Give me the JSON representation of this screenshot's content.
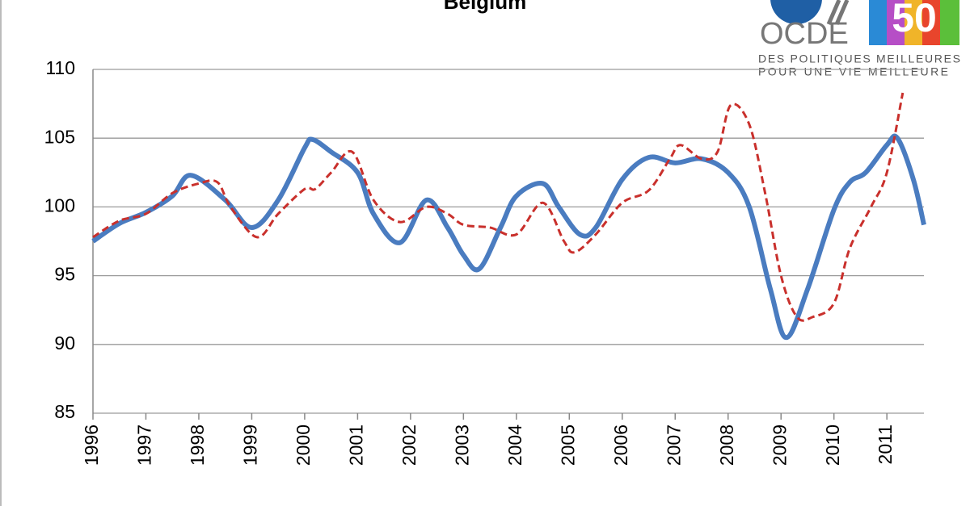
{
  "chart_data": {
    "type": "line",
    "title": "Belgium",
    "xlim": [
      1996,
      2011.7
    ],
    "xticks": [
      1996,
      1997,
      1998,
      1999,
      2000,
      2001,
      2002,
      2003,
      2004,
      2005,
      2006,
      2007,
      2008,
      2009,
      2010,
      2011
    ],
    "ylim": [
      85,
      110
    ],
    "yticks": [
      85,
      90,
      95,
      100,
      105,
      110
    ],
    "grid": true,
    "series": [
      {
        "name": "Blue",
        "color": "#4a7cc0",
        "dash": false,
        "x": [
          1996,
          1996.5,
          1997,
          1997.5,
          1997.85,
          1998.5,
          1999,
          1999.5,
          2000,
          2000.15,
          2000.5,
          2001,
          2001.3,
          2001.8,
          2002.3,
          2002.7,
          2003,
          2003.3,
          2003.7,
          2004,
          2004.5,
          2004.8,
          2005.2,
          2005.5,
          2006,
          2006.5,
          2007,
          2007.5,
          2008,
          2008.4,
          2008.8,
          2009.1,
          2009.5,
          2010,
          2010.3,
          2010.6,
          2011,
          2011.2,
          2011.5,
          2011.7
        ],
        "values": [
          97.5,
          98.8,
          99.6,
          100.8,
          102.3,
          100.5,
          98.5,
          100.5,
          104.3,
          104.9,
          104,
          102.5,
          99.5,
          97.4,
          100.5,
          98.5,
          96.5,
          95.5,
          98.5,
          100.8,
          101.7,
          100,
          98,
          98.5,
          102,
          103.6,
          103.2,
          103.5,
          102.5,
          100,
          94,
          90.5,
          94,
          99.8,
          101.8,
          102.5,
          104.5,
          105,
          102,
          98.7
        ]
      },
      {
        "name": "Red",
        "color": "#c9302c",
        "dash": true,
        "x": [
          1996,
          1996.5,
          1997,
          1997.5,
          1998,
          1998.35,
          1998.6,
          1999.1,
          1999.5,
          2000,
          2000.2,
          2000.5,
          2000.9,
          2001.3,
          2001.8,
          2002.3,
          2002.7,
          2003,
          2003.5,
          2004,
          2004.5,
          2004.9,
          2005.1,
          2005.5,
          2006,
          2006.5,
          2006.9,
          2007.1,
          2007.5,
          2007.8,
          2008.05,
          2008.4,
          2008.7,
          2009,
          2009.3,
          2009.6,
          2010,
          2010.3,
          2010.7,
          2011,
          2011.3
        ],
        "values": [
          97.8,
          99,
          99.5,
          101,
          101.7,
          101.8,
          100,
          97.8,
          99.5,
          101.3,
          101.3,
          102.5,
          104,
          100.5,
          98.9,
          100,
          99.5,
          98.7,
          98.5,
          98,
          100.3,
          97.5,
          96.7,
          98,
          100.3,
          101.2,
          103.5,
          104.5,
          103.5,
          104,
          107.4,
          106,
          101,
          95,
          92,
          92,
          93,
          97,
          100,
          102.5,
          108.3
        ]
      }
    ]
  },
  "logo": {
    "name": "OCDE",
    "number": "50",
    "tagline": [
      "DES POLITIQUES MEILLEURES",
      "POUR UNE VIE MEILLEURE"
    ]
  }
}
